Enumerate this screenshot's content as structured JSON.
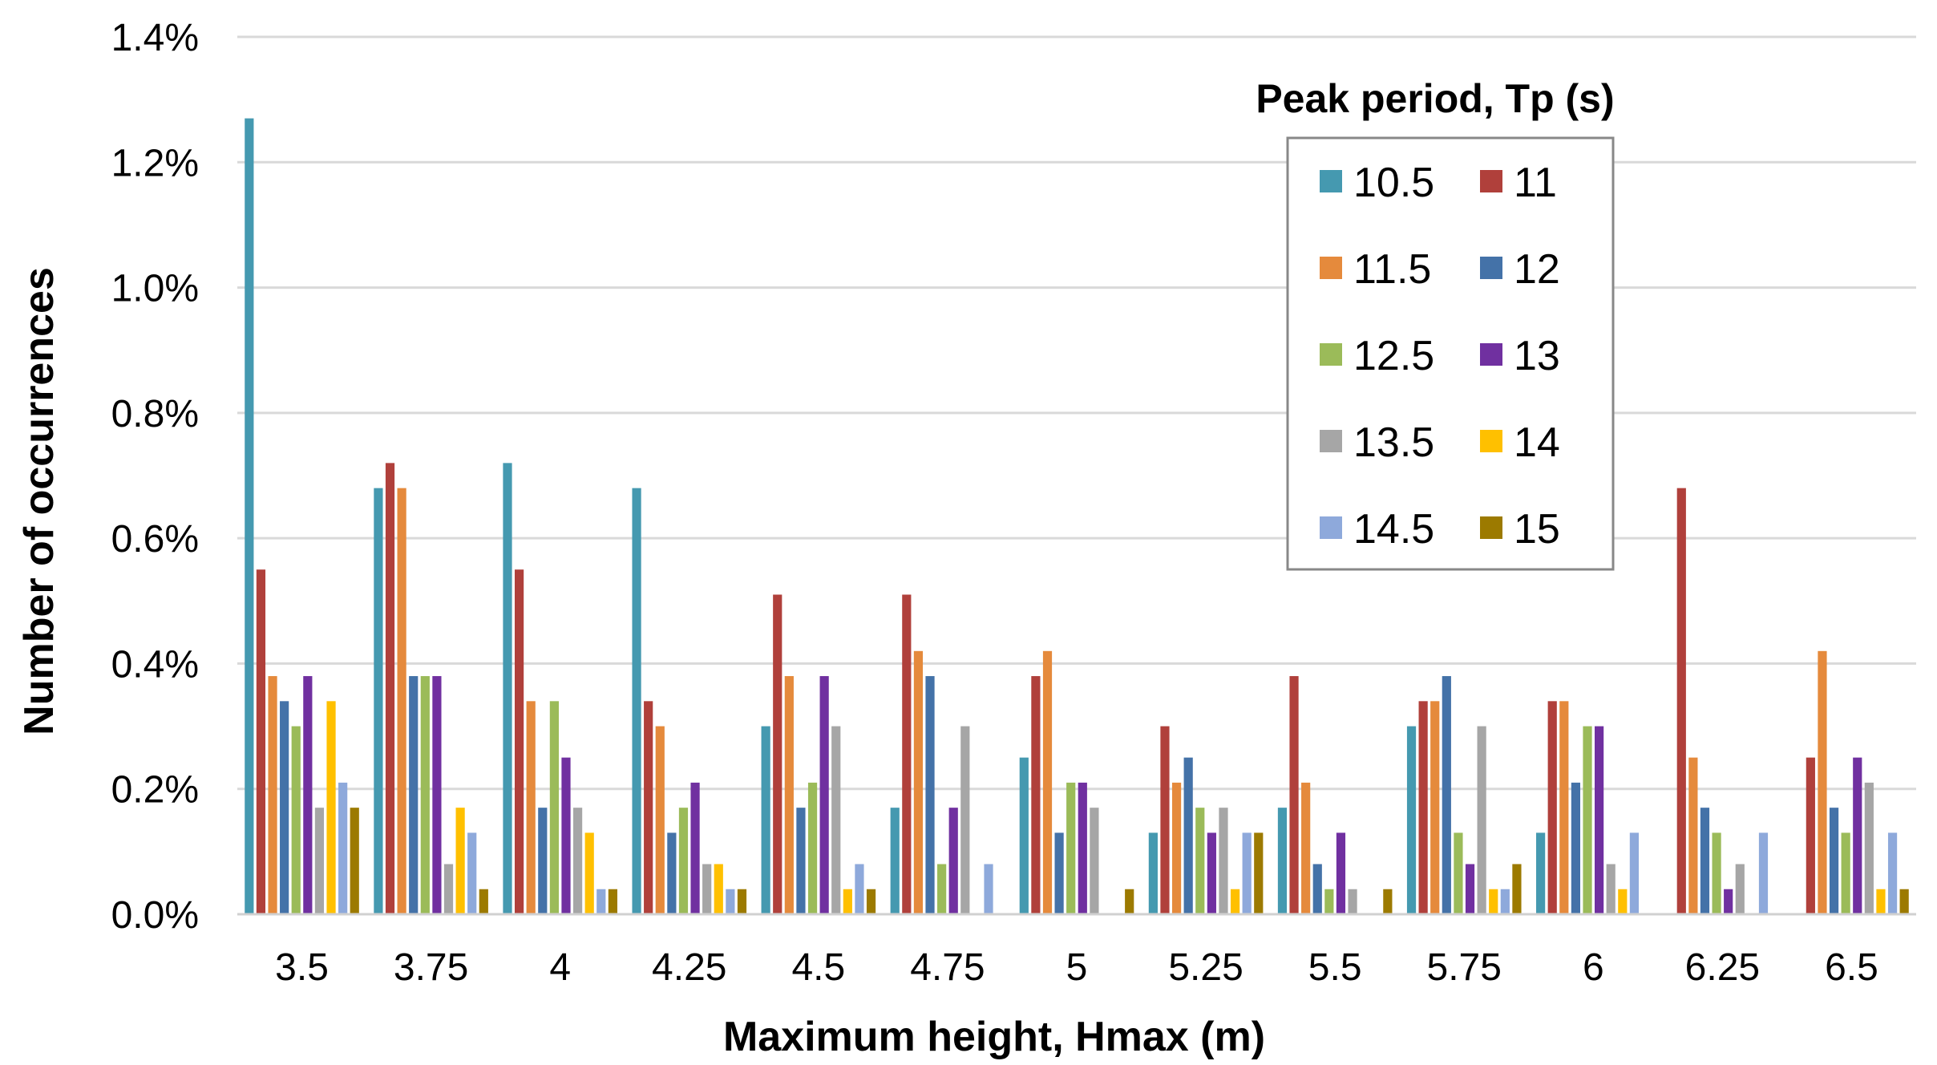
{
  "chart_data": {
    "type": "bar",
    "title": "",
    "xlabel": "Maximum height, Hmax (m)",
    "ylabel": "Number of occurrences",
    "ylim": [
      0,
      1.4
    ],
    "y_ticks": [
      "0.0%",
      "0.2%",
      "0.4%",
      "0.6%",
      "0.8%",
      "1.0%",
      "1.2%",
      "1.4%"
    ],
    "grid": true,
    "legend_title": "Peak period, Tp (s)",
    "legend_position": "top-right",
    "categories": [
      "3.5",
      "3.75",
      "4",
      "4.25",
      "4.5",
      "4.75",
      "5",
      "5.25",
      "5.5",
      "5.75",
      "6",
      "6.25",
      "6.5"
    ],
    "series": [
      {
        "name": "10.5",
        "color": "#4599B0",
        "values": [
          1.27,
          0.68,
          0.72,
          0.68,
          0.3,
          0.17,
          0.25,
          0.13,
          0.17,
          0.3,
          0.13,
          0,
          0
        ]
      },
      {
        "name": "11",
        "color": "#B0403B",
        "values": [
          0.55,
          0.72,
          0.55,
          0.34,
          0.51,
          0.51,
          0.38,
          0.3,
          0.38,
          0.34,
          0.34,
          0.68,
          0.25
        ]
      },
      {
        "name": "11.5",
        "color": "#E58A3C",
        "values": [
          0.38,
          0.68,
          0.34,
          0.3,
          0.38,
          0.42,
          0.42,
          0.21,
          0.21,
          0.34,
          0.34,
          0.25,
          0.42
        ]
      },
      {
        "name": "12",
        "color": "#4472A8",
        "values": [
          0.34,
          0.38,
          0.17,
          0.13,
          0.17,
          0.38,
          0.13,
          0.25,
          0.08,
          0.38,
          0.21,
          0.17,
          0.17
        ]
      },
      {
        "name": "12.5",
        "color": "#9BBB59",
        "values": [
          0.3,
          0.38,
          0.34,
          0.17,
          0.21,
          0.08,
          0.21,
          0.17,
          0.04,
          0.13,
          0.3,
          0.13,
          0.13
        ]
      },
      {
        "name": "13",
        "color": "#7030A0",
        "values": [
          0.38,
          0.38,
          0.25,
          0.21,
          0.38,
          0.17,
          0.21,
          0.13,
          0.13,
          0.08,
          0.3,
          0.04,
          0.25
        ]
      },
      {
        "name": "13.5",
        "color": "#A6A6A6",
        "values": [
          0.17,
          0.08,
          0.17,
          0.08,
          0.3,
          0.3,
          0.17,
          0.17,
          0.04,
          0.3,
          0.08,
          0.08,
          0.21
        ]
      },
      {
        "name": "14",
        "color": "#FFC000",
        "values": [
          0.34,
          0.17,
          0.13,
          0.08,
          0.04,
          0,
          0,
          0.04,
          0,
          0.04,
          0.04,
          0,
          0.04
        ]
      },
      {
        "name": "14.5",
        "color": "#8EA9DB",
        "values": [
          0.21,
          0.13,
          0.04,
          0.04,
          0.08,
          0.08,
          0,
          0.13,
          0,
          0.04,
          0.13,
          0.13,
          0.13
        ]
      },
      {
        "name": "15",
        "color": "#9C7A00",
        "values": [
          0.17,
          0.04,
          0.04,
          0.04,
          0.04,
          0,
          0.04,
          0.13,
          0.04,
          0.08,
          0,
          0,
          0.04
        ]
      }
    ]
  }
}
